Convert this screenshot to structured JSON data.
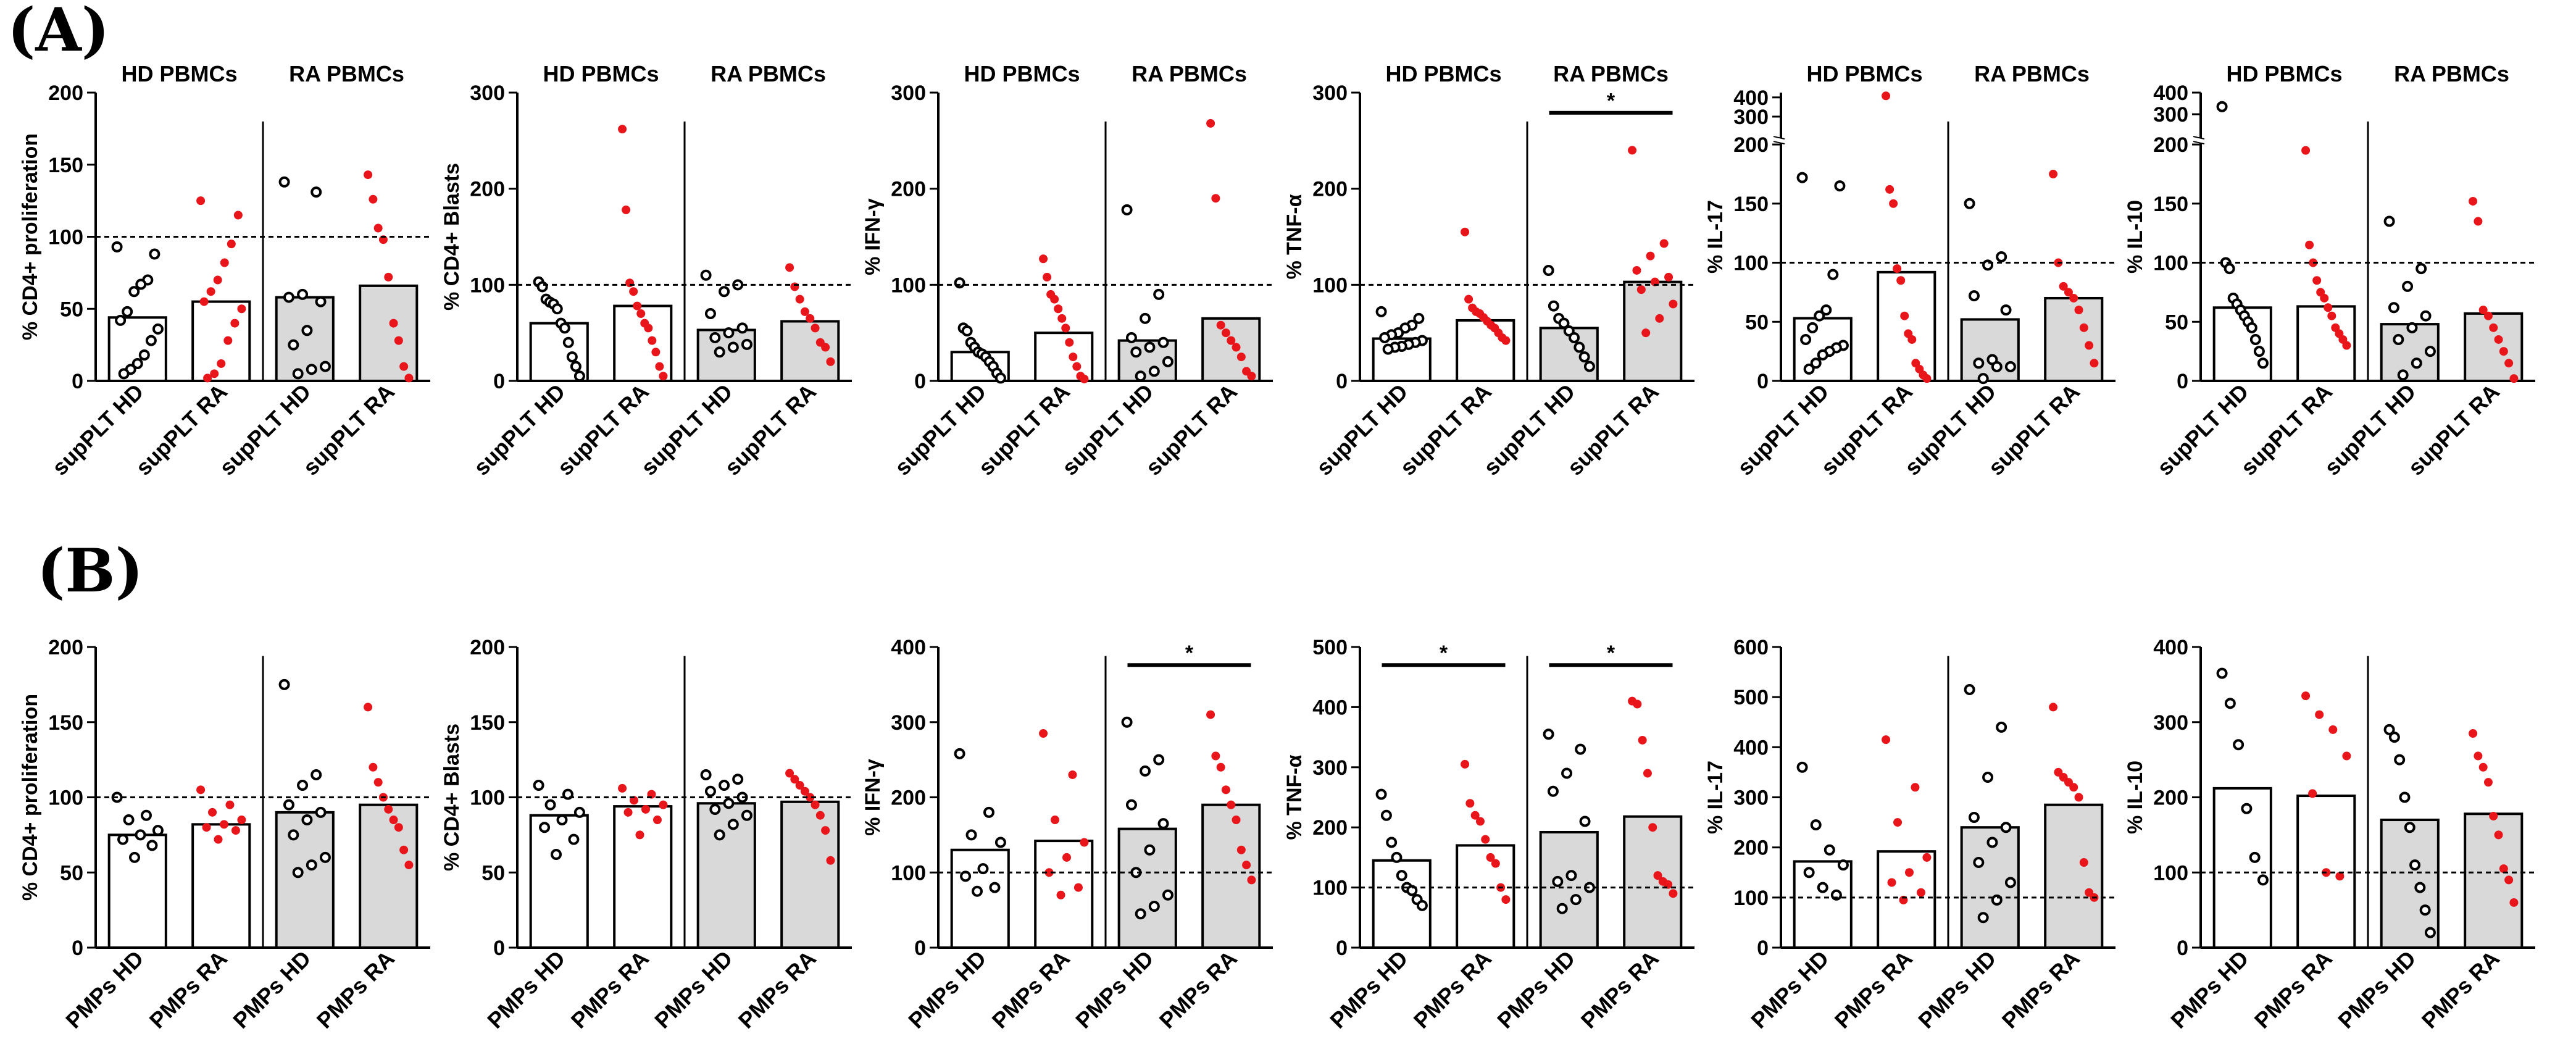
{
  "panel_labels": [
    "(A)",
    "(B)"
  ],
  "colors": {
    "hd_points": "#000000",
    "ra_points": "#e8151b",
    "bar_hd": "#ffffff",
    "bar_ra": "#d9d9d9"
  },
  "chart_data": [
    {
      "type": "bar",
      "row": "A",
      "ylabel": "% CD4+ proliferation",
      "ylim": [
        0,
        200
      ],
      "yticks": [
        0,
        50,
        100,
        150,
        200
      ],
      "categories": [
        "supPLT HD",
        "supPLT RA",
        "supPLT HD",
        "supPLT RA"
      ],
      "group_labels": [
        "HD PBMCs",
        "RA PBMCs"
      ],
      "ref_line": 100,
      "series": [
        {
          "name": "supPLT HD",
          "bar": 44,
          "points": [
            93,
            88,
            70,
            67,
            62,
            48,
            42,
            36,
            28,
            18,
            12,
            8,
            5
          ]
        },
        {
          "name": "supPLT RA",
          "bar": 55,
          "points": [
            125,
            115,
            95,
            82,
            70,
            62,
            55,
            50,
            40,
            28,
            12,
            5,
            2
          ]
        },
        {
          "name": "supPLT HD",
          "bar": 58,
          "points": [
            138,
            131,
            60,
            58,
            55,
            35,
            25,
            10,
            8,
            5
          ]
        },
        {
          "name": "supPLT RA",
          "bar": 66,
          "points": [
            143,
            126,
            106,
            98,
            72,
            40,
            28,
            10,
            2
          ]
        }
      ],
      "significance": []
    },
    {
      "type": "bar",
      "row": "A",
      "ylabel": "% CD4+ Blasts",
      "ylim": [
        0,
        300
      ],
      "yticks": [
        0,
        100,
        200,
        300
      ],
      "categories": [
        "supPLT HD",
        "supPLT RA",
        "supPLT HD",
        "supPLT RA"
      ],
      "group_labels": [
        "HD PBMCs",
        "RA PBMCs"
      ],
      "ref_line": 100,
      "series": [
        {
          "name": "supPLT HD",
          "bar": 60,
          "points": [
            103,
            98,
            85,
            82,
            80,
            75,
            60,
            55,
            40,
            25,
            15,
            5
          ]
        },
        {
          "name": "supPLT RA",
          "bar": 78,
          "points": [
            262,
            178,
            102,
            93,
            78,
            70,
            60,
            55,
            42,
            30,
            15,
            5
          ]
        },
        {
          "name": "supPLT HD",
          "bar": 53,
          "points": [
            110,
            100,
            93,
            70,
            55,
            50,
            45,
            38,
            35,
            30
          ]
        },
        {
          "name": "supPLT RA",
          "bar": 62,
          "points": [
            118,
            98,
            85,
            72,
            65,
            55,
            40,
            35,
            20
          ]
        }
      ],
      "significance": []
    },
    {
      "type": "bar",
      "row": "A",
      "ylabel": "% IFN-γ",
      "ylim": [
        0,
        300
      ],
      "yticks": [
        0,
        100,
        200,
        300
      ],
      "categories": [
        "supPLT HD",
        "supPLT RA",
        "supPLT HD",
        "supPLT RA"
      ],
      "group_labels": [
        "HD PBMCs",
        "RA PBMCs"
      ],
      "ref_line": 100,
      "series": [
        {
          "name": "supPLT HD",
          "bar": 30,
          "points": [
            102,
            55,
            52,
            40,
            35,
            30,
            28,
            25,
            20,
            15,
            8,
            3
          ]
        },
        {
          "name": "supPLT RA",
          "bar": 50,
          "points": [
            127,
            108,
            90,
            85,
            75,
            65,
            55,
            40,
            25,
            15,
            5,
            2
          ]
        },
        {
          "name": "supPLT HD",
          "bar": 42,
          "points": [
            178,
            90,
            65,
            45,
            40,
            35,
            30,
            20,
            10,
            5
          ]
        },
        {
          "name": "supPLT RA",
          "bar": 65,
          "points": [
            268,
            190,
            58,
            50,
            42,
            35,
            25,
            10,
            5
          ]
        }
      ],
      "significance": []
    },
    {
      "type": "bar",
      "row": "A",
      "ylabel": "% TNF-α",
      "ylim": [
        0,
        300
      ],
      "yticks": [
        0,
        100,
        200,
        300
      ],
      "categories": [
        "supPLT HD",
        "supPLT RA",
        "supPLT HD",
        "supPLT RA"
      ],
      "group_labels": [
        "HD PBMCs",
        "RA PBMCs"
      ],
      "ref_line": 100,
      "series": [
        {
          "name": "supPLT HD",
          "bar": 44,
          "points": [
            72,
            65,
            58,
            55,
            50,
            48,
            45,
            42,
            40,
            38,
            36,
            35,
            33
          ]
        },
        {
          "name": "supPLT RA",
          "bar": 63,
          "points": [
            155,
            85,
            76,
            72,
            70,
            66,
            62,
            58,
            55,
            50,
            45,
            42
          ]
        },
        {
          "name": "supPLT HD",
          "bar": 55,
          "points": [
            115,
            78,
            65,
            60,
            52,
            45,
            35,
            25,
            15
          ]
        },
        {
          "name": "supPLT RA",
          "bar": 103,
          "points": [
            240,
            143,
            130,
            115,
            108,
            103,
            95,
            80,
            65,
            50
          ]
        }
      ],
      "significance": [
        {
          "from": 2,
          "to": 3,
          "label": "*"
        }
      ]
    },
    {
      "type": "bar",
      "row": "A",
      "ylabel": "% IL-17",
      "ylim": [
        0,
        425
      ],
      "yticks": [
        0,
        50,
        100,
        150,
        200,
        300,
        400
      ],
      "axis_break": {
        "lower_max": 200,
        "upper_min": 200,
        "upper_max": 425
      },
      "categories": [
        "supPLT HD",
        "supPLT RA",
        "supPLT HD",
        "supPLT RA"
      ],
      "group_labels": [
        "HD PBMCs",
        "RA PBMCs"
      ],
      "ref_line": 100,
      "series": [
        {
          "name": "supPLT HD",
          "bar": 53,
          "points": [
            172,
            165,
            90,
            60,
            55,
            45,
            35,
            30,
            28,
            25,
            22,
            15,
            10
          ]
        },
        {
          "name": "supPLT RA",
          "bar": 92,
          "points": [
            408,
            162,
            150,
            95,
            85,
            55,
            40,
            35,
            15,
            10,
            5,
            2
          ]
        },
        {
          "name": "supPLT HD",
          "bar": 52,
          "points": [
            150,
            105,
            98,
            72,
            60,
            18,
            15,
            12,
            12,
            2
          ]
        },
        {
          "name": "supPLT RA",
          "bar": 70,
          "points": [
            175,
            100,
            80,
            75,
            70,
            60,
            45,
            30,
            15
          ]
        }
      ],
      "significance": []
    },
    {
      "type": "bar",
      "row": "A",
      "ylabel": "% IL-10",
      "ylim": [
        0,
        400
      ],
      "yticks": [
        0,
        50,
        100,
        150,
        200,
        300,
        400
      ],
      "axis_break": {
        "lower_max": 200,
        "upper_min": 200,
        "upper_max": 400
      },
      "categories": [
        "supPLT HD",
        "supPLT RA",
        "supPLT HD",
        "supPLT RA"
      ],
      "group_labels": [
        "HD PBMCs",
        "RA PBMCs"
      ],
      "ref_line": 100,
      "series": [
        {
          "name": "supPLT HD",
          "bar": 62,
          "points": [
            335,
            100,
            95,
            70,
            65,
            60,
            55,
            50,
            45,
            35,
            25,
            15
          ]
        },
        {
          "name": "supPLT RA",
          "bar": 63,
          "points": [
            195,
            115,
            100,
            85,
            75,
            70,
            62,
            55,
            45,
            40,
            35,
            30
          ]
        },
        {
          "name": "supPLT HD",
          "bar": 48,
          "points": [
            135,
            95,
            80,
            62,
            55,
            45,
            35,
            25,
            15,
            5
          ]
        },
        {
          "name": "supPLT RA",
          "bar": 57,
          "points": [
            152,
            135,
            60,
            55,
            45,
            35,
            25,
            15,
            2
          ]
        }
      ],
      "significance": []
    },
    {
      "type": "bar",
      "row": "B",
      "ylabel": "% CD4+ proliferation",
      "ylim": [
        0,
        200
      ],
      "yticks": [
        0,
        50,
        100,
        150,
        200
      ],
      "categories": [
        "PMPs HD",
        "PMPs RA",
        "PMPs HD",
        "PMPs RA"
      ],
      "group_labels": [],
      "ref_line": 100,
      "series": [
        {
          "name": "PMPs HD",
          "bar": 75,
          "points": [
            100,
            88,
            85,
            78,
            75,
            72,
            68,
            60
          ]
        },
        {
          "name": "PMPs RA",
          "bar": 82,
          "points": [
            105,
            95,
            90,
            85,
            82,
            80,
            78,
            72
          ]
        },
        {
          "name": "PMPs HD",
          "bar": 90,
          "points": [
            175,
            115,
            108,
            95,
            90,
            85,
            75,
            60,
            55,
            50
          ]
        },
        {
          "name": "PMPs RA",
          "bar": 95,
          "points": [
            160,
            120,
            110,
            100,
            92,
            85,
            80,
            65,
            55
          ]
        }
      ],
      "significance": []
    },
    {
      "type": "bar",
      "row": "B",
      "ylabel": "% CD4+ Blasts",
      "ylim": [
        0,
        200
      ],
      "yticks": [
        0,
        50,
        100,
        150,
        200
      ],
      "categories": [
        "PMPs HD",
        "PMPs RA",
        "PMPs HD",
        "PMPs RA"
      ],
      "group_labels": [],
      "ref_line": 100,
      "series": [
        {
          "name": "PMPs HD",
          "bar": 88,
          "points": [
            108,
            102,
            95,
            90,
            85,
            80,
            72,
            62
          ]
        },
        {
          "name": "PMPs RA",
          "bar": 94,
          "points": [
            106,
            102,
            98,
            95,
            92,
            90,
            85,
            75
          ]
        },
        {
          "name": "PMPs HD",
          "bar": 96,
          "points": [
            115,
            112,
            108,
            104,
            100,
            96,
            92,
            88,
            82,
            75
          ]
        },
        {
          "name": "PMPs RA",
          "bar": 97,
          "points": [
            116,
            112,
            108,
            104,
            100,
            95,
            88,
            78,
            58
          ]
        }
      ],
      "significance": []
    },
    {
      "type": "bar",
      "row": "B",
      "ylabel": "% IFN-γ",
      "ylim": [
        0,
        400
      ],
      "yticks": [
        0,
        100,
        200,
        300,
        400
      ],
      "categories": [
        "PMPs HD",
        "PMPs RA",
        "PMPs HD",
        "PMPs RA"
      ],
      "group_labels": [],
      "ref_line": 100,
      "series": [
        {
          "name": "PMPs HD",
          "bar": 130,
          "points": [
            258,
            180,
            150,
            140,
            105,
            95,
            80,
            75
          ]
        },
        {
          "name": "PMPs RA",
          "bar": 142,
          "points": [
            285,
            230,
            170,
            140,
            120,
            100,
            80,
            70
          ]
        },
        {
          "name": "PMPs HD",
          "bar": 158,
          "points": [
            300,
            250,
            235,
            190,
            165,
            130,
            100,
            70,
            55,
            45
          ]
        },
        {
          "name": "PMPs RA",
          "bar": 190,
          "points": [
            310,
            255,
            240,
            210,
            190,
            170,
            130,
            110,
            90
          ]
        }
      ],
      "significance": [
        {
          "from": 2,
          "to": 3,
          "label": "*"
        }
      ]
    },
    {
      "type": "bar",
      "row": "B",
      "ylabel": "% TNF-α",
      "ylim": [
        0,
        500
      ],
      "yticks": [
        0,
        100,
        200,
        300,
        400,
        500
      ],
      "categories": [
        "PMPs HD",
        "PMPs RA",
        "PMPs HD",
        "PMPs RA"
      ],
      "group_labels": [],
      "ref_line": 100,
      "series": [
        {
          "name": "PMPs HD",
          "bar": 145,
          "points": [
            255,
            220,
            175,
            150,
            120,
            100,
            95,
            80,
            70
          ]
        },
        {
          "name": "PMPs RA",
          "bar": 170,
          "points": [
            305,
            240,
            220,
            210,
            180,
            150,
            140,
            100,
            80
          ]
        },
        {
          "name": "PMPs HD",
          "bar": 192,
          "points": [
            355,
            330,
            290,
            260,
            210,
            120,
            110,
            100,
            80,
            65
          ]
        },
        {
          "name": "PMPs RA",
          "bar": 218,
          "points": [
            410,
            405,
            345,
            290,
            200,
            120,
            110,
            105,
            90
          ]
        }
      ],
      "significance": [
        {
          "from": 0,
          "to": 1,
          "label": "*"
        },
        {
          "from": 2,
          "to": 3,
          "label": "*"
        }
      ]
    },
    {
      "type": "bar",
      "row": "B",
      "ylabel": "% IL-17",
      "ylim": [
        0,
        600
      ],
      "yticks": [
        0,
        100,
        200,
        300,
        400,
        500,
        600
      ],
      "categories": [
        "PMPs HD",
        "PMPs RA",
        "PMPs HD",
        "PMPs RA"
      ],
      "group_labels": [],
      "ref_line": 100,
      "series": [
        {
          "name": "PMPs HD",
          "bar": 172,
          "points": [
            360,
            245,
            195,
            165,
            150,
            120,
            105
          ]
        },
        {
          "name": "PMPs RA",
          "bar": 192,
          "points": [
            415,
            320,
            250,
            180,
            150,
            130,
            110,
            95
          ]
        },
        {
          "name": "PMPs HD",
          "bar": 240,
          "points": [
            515,
            440,
            340,
            260,
            240,
            210,
            170,
            130,
            95,
            60
          ]
        },
        {
          "name": "PMPs RA",
          "bar": 285,
          "points": [
            480,
            350,
            340,
            330,
            320,
            300,
            170,
            110,
            100
          ]
        }
      ],
      "significance": []
    },
    {
      "type": "bar",
      "row": "B",
      "ylabel": "% IL-10",
      "ylim": [
        0,
        400
      ],
      "yticks": [
        0,
        100,
        200,
        300,
        400
      ],
      "categories": [
        "PMPs HD",
        "PMPs RA",
        "PMPs HD",
        "PMPs RA"
      ],
      "group_labels": [],
      "ref_line": 100,
      "series": [
        {
          "name": "PMPs HD",
          "bar": 212,
          "points": [
            365,
            325,
            270,
            185,
            120,
            90
          ]
        },
        {
          "name": "PMPs RA",
          "bar": 202,
          "points": [
            335,
            310,
            290,
            255,
            205,
            100,
            95
          ]
        },
        {
          "name": "PMPs HD",
          "bar": 170,
          "points": [
            290,
            280,
            250,
            200,
            160,
            110,
            80,
            50,
            20
          ]
        },
        {
          "name": "PMPs RA",
          "bar": 178,
          "points": [
            285,
            255,
            240,
            220,
            175,
            150,
            105,
            90,
            60
          ]
        }
      ],
      "significance": []
    }
  ]
}
